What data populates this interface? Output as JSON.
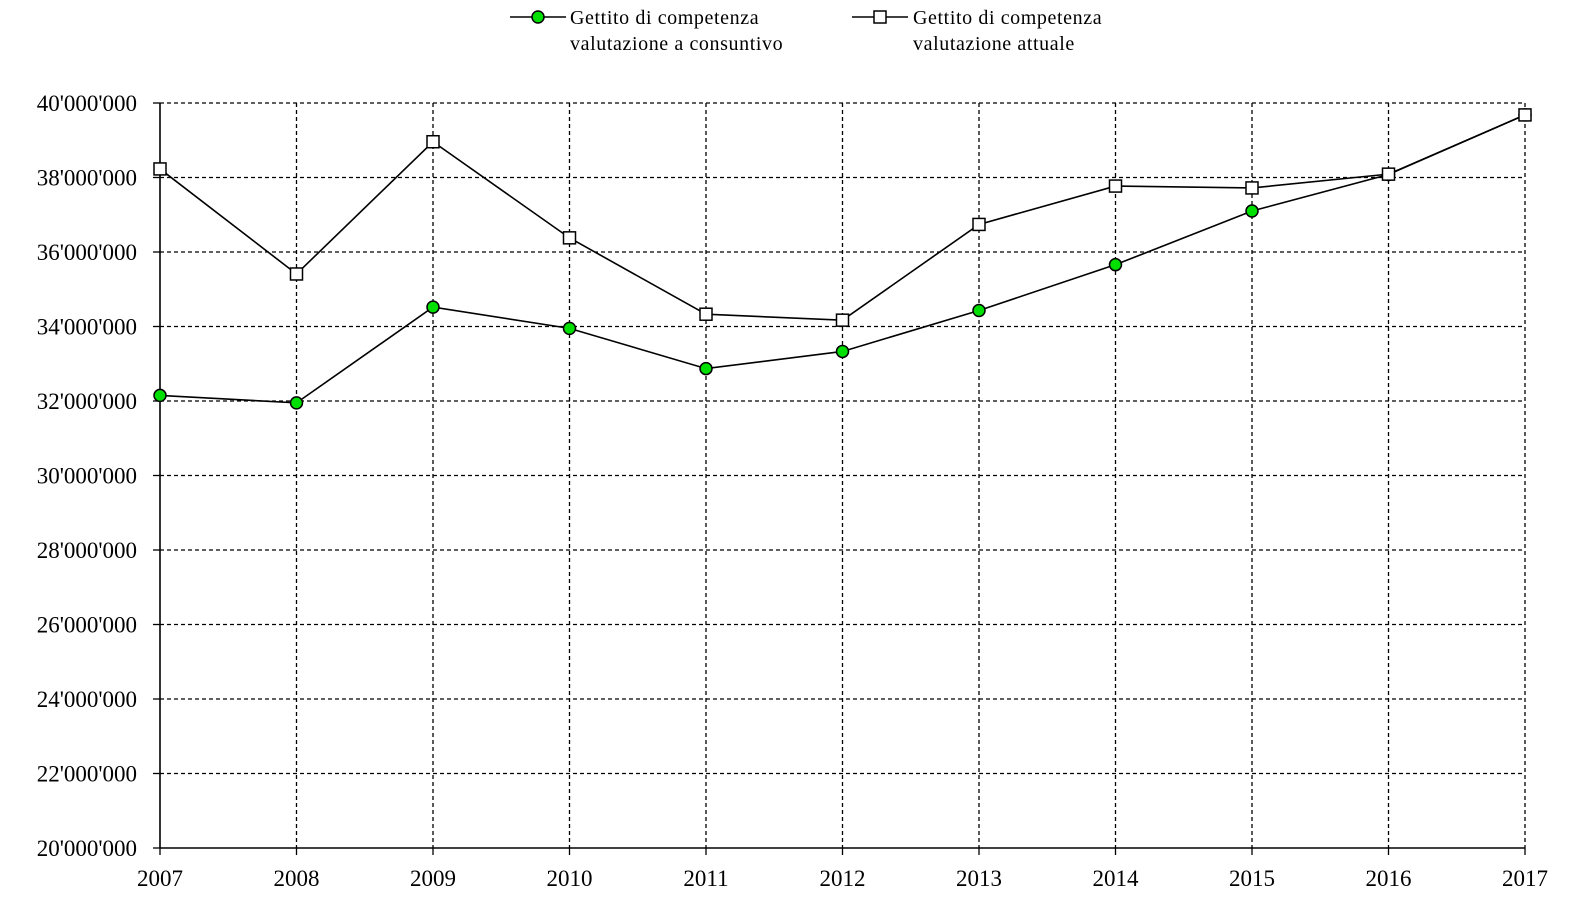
{
  "chart_data": {
    "type": "line",
    "title": "",
    "xlabel": "",
    "ylabel": "",
    "x": [
      2007,
      2008,
      2009,
      2010,
      2011,
      2012,
      2013,
      2014,
      2015,
      2016,
      2017
    ],
    "x_tick_labels": [
      "2007",
      "2008",
      "2009",
      "2010",
      "2011",
      "2012",
      "2013",
      "2014",
      "2015",
      "2016",
      "2017"
    ],
    "ylim": [
      20000000,
      40000000
    ],
    "y_ticks": [
      20000000,
      22000000,
      24000000,
      26000000,
      28000000,
      30000000,
      32000000,
      34000000,
      36000000,
      38000000,
      40000000
    ],
    "y_tick_labels": [
      "20'000'000",
      "22'000'000",
      "24'000'000",
      "26'000'000",
      "28'000'000",
      "30'000'000",
      "32'000'000",
      "34'000'000",
      "36'000'000",
      "38'000'000",
      "40'000'000"
    ],
    "grid": true,
    "grid_style": "dashed",
    "legend_position": "top-center",
    "series": [
      {
        "name_lines": [
          "Gettito di competenza",
          "valutazione a consuntivo"
        ],
        "marker": "circle",
        "marker_fill": "#00e000",
        "line_color": "#000000",
        "values": [
          32150000,
          31950000,
          34520000,
          33950000,
          32870000,
          33330000,
          34430000,
          35660000,
          37100000,
          38080000,
          39680000
        ]
      },
      {
        "name_lines": [
          "Gettito di competenza",
          "valutazione attuale"
        ],
        "marker": "square",
        "marker_fill": "#ffffff",
        "line_color": "#000000",
        "values": [
          38230000,
          35410000,
          38960000,
          36380000,
          34330000,
          34170000,
          36740000,
          37770000,
          37720000,
          38090000,
          39680000
        ]
      }
    ]
  }
}
